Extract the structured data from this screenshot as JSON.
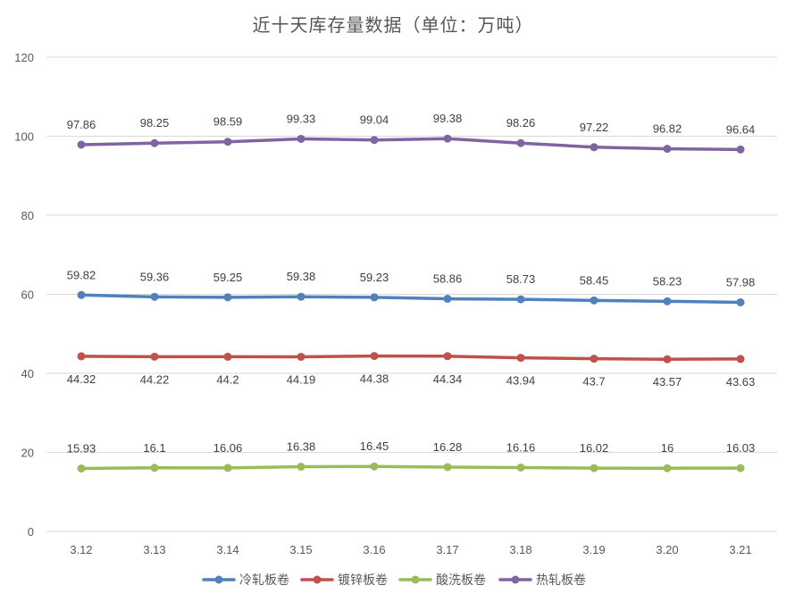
{
  "chart_data": {
    "type": "line",
    "title": "近十天库存量数据（单位：万吨）",
    "xlabel": "",
    "ylabel": "",
    "ylim": [
      0,
      120
    ],
    "yticks": [
      0,
      20,
      40,
      60,
      80,
      100,
      120
    ],
    "grid": true,
    "legend_position": "bottom",
    "categories": [
      "3.12",
      "3.13",
      "3.14",
      "3.15",
      "3.16",
      "3.17",
      "3.18",
      "3.19",
      "3.20",
      "3.21"
    ],
    "series": [
      {
        "name": "冷轧板卷",
        "color": "#4F81BD",
        "label_position": "above",
        "values": [
          59.82,
          59.36,
          59.25,
          59.38,
          59.23,
          58.86,
          58.73,
          58.45,
          58.23,
          57.98
        ],
        "labels": [
          "59.82",
          "59.36",
          "59.25",
          "59.38",
          "59.23",
          "58.86",
          "58.73",
          "58.45",
          "58.23",
          "57.98"
        ]
      },
      {
        "name": "镀锌板卷",
        "color": "#C0504D",
        "label_position": "below",
        "values": [
          44.32,
          44.22,
          44.2,
          44.19,
          44.38,
          44.34,
          43.94,
          43.7,
          43.57,
          43.63
        ],
        "labels": [
          "44.32",
          "44.22",
          "44.2",
          "44.19",
          "44.38",
          "44.34",
          "43.94",
          "43.7",
          "43.57",
          "43.63"
        ]
      },
      {
        "name": "酸洗板卷",
        "color": "#9BBB59",
        "label_position": "above",
        "values": [
          15.93,
          16.1,
          16.06,
          16.38,
          16.45,
          16.28,
          16.16,
          16.02,
          16,
          16.03
        ],
        "labels": [
          "15.93",
          "16.1",
          "16.06",
          "16.38",
          "16.45",
          "16.28",
          "16.16",
          "16.02",
          "16",
          "16.03"
        ]
      },
      {
        "name": "热轧板卷",
        "color": "#8064A2",
        "label_position": "above",
        "values": [
          97.86,
          98.25,
          98.59,
          99.33,
          99.04,
          99.38,
          98.26,
          97.22,
          96.82,
          96.64
        ],
        "labels": [
          "97.86",
          "98.25",
          "98.59",
          "99.33",
          "99.04",
          "99.38",
          "98.26",
          "97.22",
          "96.82",
          "96.64"
        ]
      }
    ]
  }
}
